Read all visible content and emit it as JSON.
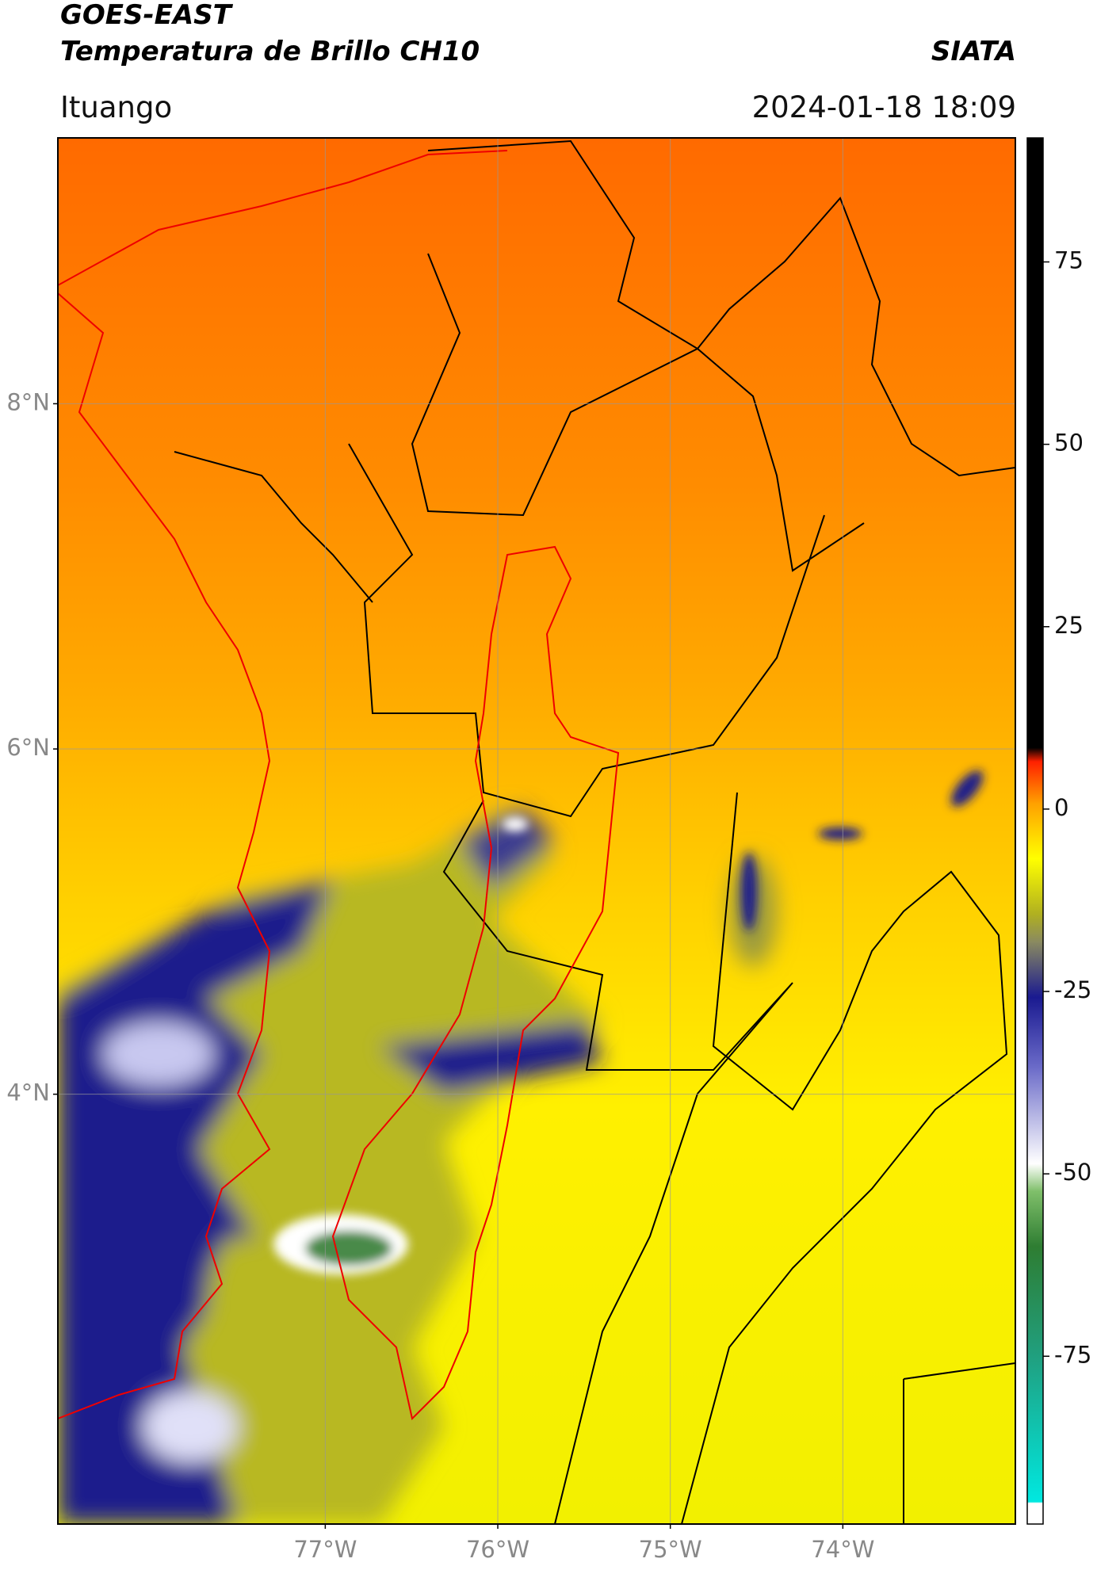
{
  "header": {
    "title": "GOES-EAST",
    "subtitle": "Temperatura de Brillo CH10",
    "source": "SIATA",
    "location": "Ituango",
    "datetime": "2024-01-18 18:09"
  },
  "map": {
    "xlim": [
      -78.55,
      -73.0
    ],
    "ylim": [
      1.51,
      9.54
    ],
    "xticks": [
      {
        "value": -77,
        "label": "77°W"
      },
      {
        "value": -76,
        "label": "76°W"
      },
      {
        "value": -75,
        "label": "75°W"
      },
      {
        "value": -74,
        "label": "74°W"
      }
    ],
    "yticks": [
      {
        "value": 8,
        "label": "8°N"
      },
      {
        "value": 6,
        "label": "6°N"
      },
      {
        "value": 4,
        "label": "4°N"
      }
    ],
    "grid": true
  },
  "colorbar": {
    "lim": [
      -98,
      92
    ],
    "ticks": [
      75,
      50,
      25,
      0,
      -25,
      -50,
      -75
    ]
  }
}
